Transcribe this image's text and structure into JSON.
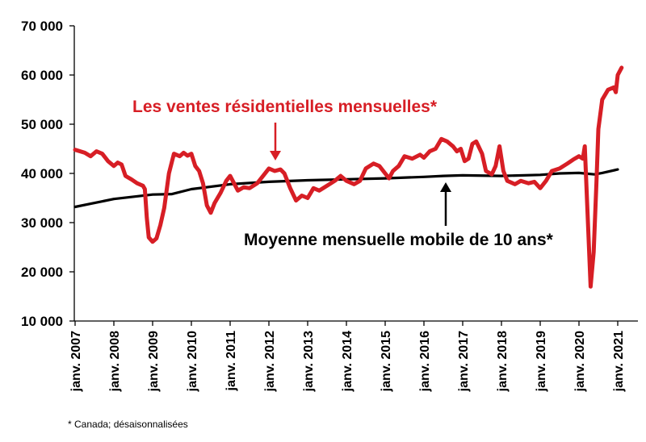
{
  "chart_data": {
    "type": "line",
    "title": "",
    "xlabel": "",
    "ylabel": "",
    "ylim": [
      10000,
      70000
    ],
    "xlim": [
      2007.0,
      2021.1
    ],
    "grid": false,
    "y_ticks": [
      10000,
      20000,
      30000,
      40000,
      50000,
      60000,
      70000
    ],
    "y_tick_labels": [
      "10 000",
      "20 000",
      "30 000",
      "40 000",
      "50 000",
      "60 000",
      "70 000"
    ],
    "x_ticks": [
      2007,
      2008,
      2009,
      2010,
      2011,
      2012,
      2013,
      2014,
      2015,
      2016,
      2017,
      2018,
      2019,
      2020,
      2021
    ],
    "x_tick_labels": [
      "janv. 2007",
      "janv. 2008",
      "janv. 2009",
      "janv. 2010",
      "janv. 2011",
      "janv. 2012",
      "janv. 2013",
      "janv. 2014",
      "janv. 2015",
      "janv. 2016",
      "janv. 2017",
      "janv. 2018",
      "janv. 2019",
      "janv. 2020",
      "janv. 2021"
    ],
    "series": [
      {
        "name": "Les ventes résidentielles mensuelles*",
        "color": "#d71e25",
        "points": [
          [
            2007.0,
            44800
          ],
          [
            2007.25,
            44200
          ],
          [
            2007.4,
            43500
          ],
          [
            2007.55,
            44500
          ],
          [
            2007.7,
            44000
          ],
          [
            2007.85,
            42500
          ],
          [
            2008.0,
            41500
          ],
          [
            2008.1,
            42200
          ],
          [
            2008.2,
            41800
          ],
          [
            2008.3,
            39500
          ],
          [
            2008.45,
            38800
          ],
          [
            2008.6,
            38000
          ],
          [
            2008.75,
            37500
          ],
          [
            2008.8,
            36800
          ],
          [
            2008.85,
            31000
          ],
          [
            2008.9,
            27000
          ],
          [
            2009.0,
            26100
          ],
          [
            2009.1,
            26800
          ],
          [
            2009.2,
            29500
          ],
          [
            2009.3,
            33000
          ],
          [
            2009.42,
            40000
          ],
          [
            2009.55,
            44000
          ],
          [
            2009.7,
            43500
          ],
          [
            2009.8,
            44200
          ],
          [
            2009.9,
            43600
          ],
          [
            2010.0,
            44000
          ],
          [
            2010.1,
            41500
          ],
          [
            2010.2,
            40500
          ],
          [
            2010.3,
            38000
          ],
          [
            2010.4,
            33500
          ],
          [
            2010.5,
            32000
          ],
          [
            2010.6,
            34000
          ],
          [
            2010.75,
            36000
          ],
          [
            2010.9,
            38500
          ],
          [
            2011.0,
            39500
          ],
          [
            2011.1,
            38000
          ],
          [
            2011.2,
            36500
          ],
          [
            2011.35,
            37200
          ],
          [
            2011.5,
            37000
          ],
          [
            2011.7,
            38000
          ],
          [
            2011.85,
            39500
          ],
          [
            2012.0,
            41000
          ],
          [
            2012.15,
            40500
          ],
          [
            2012.3,
            40800
          ],
          [
            2012.4,
            40000
          ],
          [
            2012.55,
            37000
          ],
          [
            2012.7,
            34500
          ],
          [
            2012.85,
            35500
          ],
          [
            2013.0,
            35000
          ],
          [
            2013.15,
            37000
          ],
          [
            2013.3,
            36500
          ],
          [
            2013.5,
            37500
          ],
          [
            2013.7,
            38500
          ],
          [
            2013.85,
            39500
          ],
          [
            2014.0,
            38500
          ],
          [
            2014.2,
            37800
          ],
          [
            2014.35,
            38500
          ],
          [
            2014.5,
            41000
          ],
          [
            2014.7,
            42000
          ],
          [
            2014.85,
            41500
          ],
          [
            2015.0,
            40000
          ],
          [
            2015.1,
            39000
          ],
          [
            2015.2,
            40500
          ],
          [
            2015.35,
            41500
          ],
          [
            2015.5,
            43500
          ],
          [
            2015.7,
            43000
          ],
          [
            2015.9,
            43800
          ],
          [
            2016.0,
            43200
          ],
          [
            2016.15,
            44500
          ],
          [
            2016.3,
            45000
          ],
          [
            2016.45,
            47000
          ],
          [
            2016.6,
            46500
          ],
          [
            2016.75,
            45500
          ],
          [
            2016.85,
            44500
          ],
          [
            2016.95,
            45000
          ],
          [
            2017.05,
            42500
          ],
          [
            2017.15,
            43000
          ],
          [
            2017.25,
            46000
          ],
          [
            2017.35,
            46500
          ],
          [
            2017.5,
            44000
          ],
          [
            2017.6,
            40500
          ],
          [
            2017.75,
            39800
          ],
          [
            2017.85,
            41500
          ],
          [
            2017.95,
            45500
          ],
          [
            2018.05,
            40500
          ],
          [
            2018.15,
            38500
          ],
          [
            2018.35,
            37800
          ],
          [
            2018.5,
            38500
          ],
          [
            2018.7,
            38000
          ],
          [
            2018.85,
            38300
          ],
          [
            2019.0,
            37000
          ],
          [
            2019.15,
            38500
          ],
          [
            2019.3,
            40500
          ],
          [
            2019.5,
            41000
          ],
          [
            2019.7,
            42000
          ],
          [
            2019.85,
            42800
          ],
          [
            2020.0,
            43500
          ],
          [
            2020.1,
            43000
          ],
          [
            2020.15,
            45500
          ],
          [
            2020.22,
            32000
          ],
          [
            2020.3,
            17000
          ],
          [
            2020.38,
            24000
          ],
          [
            2020.45,
            38000
          ],
          [
            2020.5,
            49000
          ],
          [
            2020.6,
            55000
          ],
          [
            2020.75,
            57000
          ],
          [
            2020.9,
            57500
          ],
          [
            2020.95,
            56500
          ],
          [
            2021.0,
            60000
          ],
          [
            2021.1,
            61500
          ]
        ]
      },
      {
        "name": "Moyenne mensuelle mobile de 10 ans*",
        "color": "#000000",
        "points": [
          [
            2007.0,
            33200
          ],
          [
            2008.0,
            34800
          ],
          [
            2009.0,
            35700
          ],
          [
            2009.5,
            35800
          ],
          [
            2010.0,
            36800
          ],
          [
            2011.0,
            37800
          ],
          [
            2012.0,
            38300
          ],
          [
            2013.0,
            38600
          ],
          [
            2014.0,
            38800
          ],
          [
            2015.0,
            39000
          ],
          [
            2016.0,
            39300
          ],
          [
            2016.5,
            39500
          ],
          [
            2017.0,
            39600
          ],
          [
            2018.0,
            39500
          ],
          [
            2019.0,
            39700
          ],
          [
            2019.5,
            40000
          ],
          [
            2020.0,
            40100
          ],
          [
            2020.4,
            39800
          ],
          [
            2020.6,
            40100
          ],
          [
            2021.0,
            40800
          ]
        ]
      }
    ],
    "annotations": [
      {
        "text": "Les ventes résidentielles mensuelles*",
        "arrow_target": [
          2012.1,
          41000
        ]
      },
      {
        "text": "Moyenne mensuelle mobile de 10 ans*",
        "arrow_target": [
          2016.6,
          39600
        ]
      }
    ],
    "footnote": "* Canada; désaisonnalisées"
  }
}
